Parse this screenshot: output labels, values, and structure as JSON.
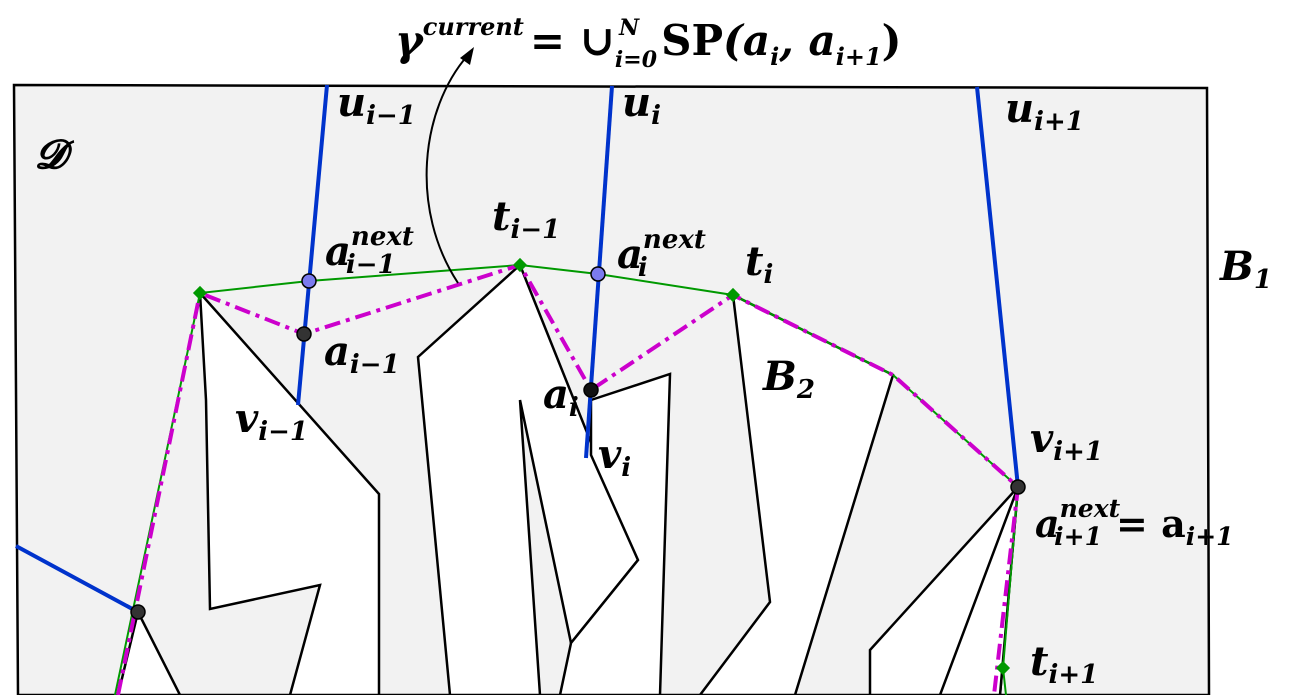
{
  "formula": {
    "base": "γ",
    "sup": "current",
    "equals": "= ∪",
    "union_sub": "i=0",
    "union_sup": "N",
    "sp": "SP",
    "args": "(a",
    "arg1_sub": "i",
    "comma": ", a",
    "arg2_sub": "i+1",
    "close": ")"
  },
  "labels": {
    "domain": "𝓓",
    "b1": {
      "base": "B",
      "sub": "1"
    },
    "b2": {
      "base": "B",
      "sub": "2"
    },
    "u_prev": {
      "base": "u",
      "sub": "i−1"
    },
    "u_cur": {
      "base": "u",
      "sub": "i"
    },
    "u_next": {
      "base": "u",
      "sub": "i+1"
    },
    "v_prev": {
      "base": "v",
      "sub": "i−1"
    },
    "v_cur": {
      "base": "v",
      "sub": "i"
    },
    "v_next": {
      "base": "v",
      "sub": "i+1"
    },
    "t_prev": {
      "base": "t",
      "sub": "i−1"
    },
    "t_cur": {
      "base": "t",
      "sub": "i"
    },
    "t_next": {
      "base": "t",
      "sub": "i+1"
    },
    "a_prev_next": {
      "base": "a",
      "sup": "next",
      "sub": "i−1"
    },
    "a_cur_next": {
      "base": "a",
      "sup": "next",
      "sub": "i"
    },
    "a_prev": {
      "base": "a",
      "sub": "i−1"
    },
    "a_cur": {
      "base": "a",
      "sub": "i"
    },
    "a_next_eq": {
      "base": "a",
      "sup": "next",
      "sub": "i+1",
      "eq": "= a",
      "eq_sub": "i+1"
    }
  },
  "colors": {
    "domain_fill": "#f2f2f2",
    "obstacle_stroke": "#000000",
    "blue_line": "#0033cc",
    "green_path": "#009900",
    "magenta_path": "#cc00cc",
    "purple_point": "#7b7bef",
    "dark_point": "#333333"
  }
}
